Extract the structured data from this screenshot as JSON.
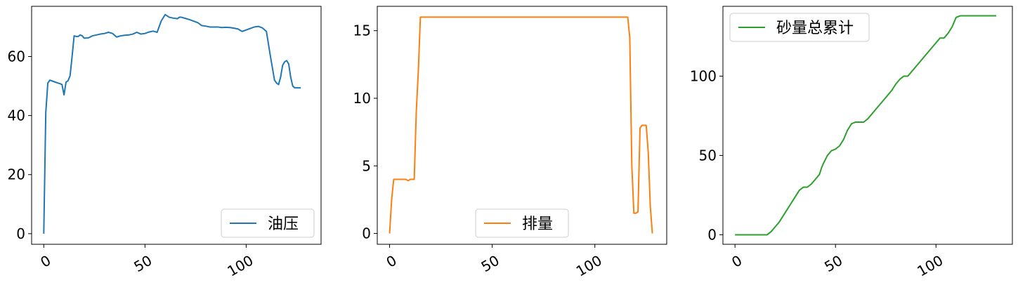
{
  "chart_data": [
    {
      "type": "line",
      "xlim": [
        -6,
        137
      ],
      "ylim": [
        -3.6,
        77
      ],
      "xticks": [
        0,
        50,
        100
      ],
      "yticks": [
        0,
        20,
        40,
        60
      ],
      "tick_labels_x": [
        "0",
        "50",
        "100"
      ],
      "tick_labels_y": [
        "0",
        "20",
        "40",
        "60"
      ],
      "legend_position": "lower-right",
      "series": [
        {
          "name": "油压",
          "color": "#1f77b4",
          "x": [
            0,
            1,
            2,
            3,
            5,
            7,
            8,
            9,
            10,
            11,
            12,
            13,
            14,
            15,
            16,
            17,
            18,
            19,
            20,
            22,
            24,
            26,
            28,
            30,
            32,
            34,
            36,
            38,
            40,
            42,
            44,
            46,
            48,
            50,
            52,
            54,
            56,
            58,
            60,
            62,
            64,
            66,
            67,
            68,
            70,
            72,
            74,
            76,
            78,
            80,
            82,
            84,
            86,
            88,
            90,
            92,
            94,
            96,
            98,
            100,
            102,
            104,
            106,
            108,
            110,
            112,
            114,
            115,
            116,
            117,
            118,
            119,
            120,
            121,
            122,
            123,
            124,
            125,
            126,
            127
          ],
          "values": [
            0,
            41,
            51,
            52,
            51.5,
            51,
            50.8,
            50.5,
            47,
            51.3,
            51.8,
            53.5,
            60,
            67,
            66.8,
            66.8,
            67.3,
            67,
            66.2,
            66.3,
            67,
            67.3,
            67.6,
            67.8,
            68.2,
            67.8,
            66.6,
            67,
            67.2,
            67.3,
            67.6,
            68.2,
            67.6,
            67.8,
            68.3,
            68.6,
            68.2,
            72,
            74.2,
            73.3,
            73,
            72.8,
            73.3,
            73.3,
            72.9,
            72.5,
            72,
            71.5,
            70.5,
            70.3,
            70,
            70,
            70,
            69.8,
            69.9,
            69.8,
            69.6,
            69.3,
            68.5,
            69,
            69.5,
            70,
            70.2,
            69.7,
            68.5,
            60,
            52,
            51,
            50.5,
            53,
            57,
            58.2,
            58.6,
            57.5,
            53,
            50,
            49.4,
            49.4,
            49.4,
            49.4
          ],
          "x_shift_note": ""
        }
      ]
    },
    {
      "type": "line",
      "xlim": [
        -6,
        135
      ],
      "ylim": [
        -0.8,
        16.8
      ],
      "xticks": [
        0,
        50,
        100
      ],
      "yticks": [
        0,
        5,
        10,
        15
      ],
      "tick_labels_x": [
        "0",
        "50",
        "100"
      ],
      "tick_labels_y": [
        "0",
        "5",
        "10",
        "15"
      ],
      "legend_position": "lower-center",
      "series": [
        {
          "name": "排量",
          "color": "#ff7f0e",
          "x": [
            0,
            1,
            2,
            5,
            8,
            9,
            10,
            11,
            12,
            13,
            14,
            15,
            16,
            116,
            117,
            118,
            119,
            120,
            121,
            122,
            123,
            124,
            125,
            126,
            127,
            128
          ],
          "values": [
            0,
            2.5,
            4,
            4,
            4,
            3.9,
            4,
            4,
            4,
            9,
            12,
            16,
            16,
            16,
            14.5,
            5,
            1.5,
            1.5,
            1.6,
            7.8,
            8,
            8,
            8,
            6,
            2,
            0
          ]
        }
      ]
    },
    {
      "type": "line",
      "xlim": [
        -6,
        138
      ],
      "ylim": [
        -6,
        144
      ],
      "xticks": [
        0,
        50,
        100
      ],
      "yticks": [
        0,
        50,
        100
      ],
      "tick_labels_x": [
        "0",
        "50",
        "100"
      ],
      "tick_labels_y": [
        "0",
        "50",
        "100"
      ],
      "legend_position": "upper-left",
      "series": [
        {
          "name": "砂量总累计",
          "color": "#2ca02c",
          "x": [
            0,
            5,
            10,
            16,
            18,
            20,
            22,
            24,
            26,
            28,
            30,
            32,
            34,
            36,
            38,
            40,
            42,
            43,
            44,
            46,
            48,
            50,
            52,
            54,
            56,
            58,
            60,
            62,
            64,
            66,
            68,
            70,
            72,
            74,
            76,
            78,
            80,
            82,
            84,
            86,
            88,
            90,
            92,
            94,
            96,
            98,
            100,
            102,
            104,
            106,
            108,
            110,
            112,
            115,
            120,
            125,
            130
          ],
          "values": [
            0,
            0,
            0,
            0,
            2,
            5,
            8,
            12,
            16,
            20,
            24,
            28,
            30,
            30,
            32,
            35,
            38,
            42,
            45,
            50,
            53,
            54,
            56,
            60,
            66,
            70,
            71,
            71,
            71,
            73,
            76,
            79,
            82,
            85,
            88,
            91,
            95,
            98,
            100,
            100,
            103,
            106,
            109,
            112,
            115,
            118,
            121,
            124,
            124,
            127,
            131,
            137,
            138,
            138,
            138,
            138,
            138
          ]
        }
      ]
    }
  ]
}
